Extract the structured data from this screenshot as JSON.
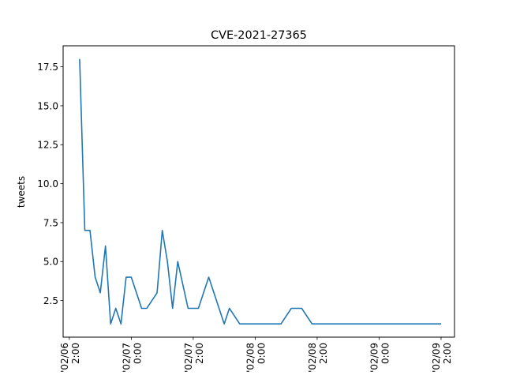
{
  "chart_data": {
    "type": "line",
    "title": "CVE-2021-27365",
    "xlabel": "",
    "ylabel": "tweets",
    "grid": false,
    "color": "#1f77b4",
    "ylim": [
      0.15,
      18.85
    ],
    "xlim": [
      -0.3,
      18.65
    ],
    "yticks": [
      2.5,
      5.0,
      7.5,
      10.0,
      12.5,
      15.0,
      17.5
    ],
    "ytick_labels": [
      "2.5",
      "5.0",
      "7.5",
      "10.0",
      "12.5",
      "15.0",
      "17.5"
    ],
    "xticks": [
      0,
      3,
      6,
      9,
      12,
      15,
      18
    ],
    "xtick_labels": [
      [
        "'02/06",
        "2:00"
      ],
      [
        "'02/07",
        "0:00"
      ],
      [
        "'02/07",
        "2:00"
      ],
      [
        "'02/08",
        "0:00"
      ],
      [
        "'02/08",
        "2:00"
      ],
      [
        "'02/09",
        "0:00"
      ],
      [
        "'02/09",
        "2:00"
      ]
    ],
    "x": [
      0.5,
      0.75,
      1.0,
      1.25,
      1.5,
      1.75,
      2.0,
      2.25,
      2.5,
      2.75,
      3.0,
      3.25,
      3.5,
      3.75,
      4.0,
      4.25,
      4.5,
      4.75,
      5.0,
      5.25,
      5.5,
      5.75,
      6.0,
      6.25,
      6.5,
      6.75,
      7.0,
      7.25,
      7.5,
      7.75,
      8.0,
      8.25,
      8.5,
      8.75,
      9.0,
      9.25,
      9.5,
      9.75,
      10.0,
      10.25,
      10.5,
      10.75,
      11.0,
      11.25,
      11.5,
      11.75,
      12.0,
      12.25,
      12.5,
      12.75,
      13.0,
      13.25,
      13.5,
      13.75,
      14.0,
      14.25,
      14.5,
      14.75,
      15.0,
      15.25,
      15.5,
      15.75,
      16.0,
      16.25,
      16.5,
      16.75,
      17.0,
      17.25,
      17.5,
      17.75,
      18.0
    ],
    "y": [
      18,
      7,
      7,
      4,
      3,
      6,
      1,
      2,
      1,
      4,
      4,
      3,
      2,
      2,
      2.5,
      3,
      7,
      5,
      2,
      5,
      3.5,
      2,
      2,
      2,
      3,
      4,
      3,
      2,
      1,
      2,
      1.5,
      1,
      1,
      1,
      1,
      1,
      1,
      1,
      1,
      1,
      1.5,
      2,
      2,
      2,
      1.5,
      1,
      1,
      1,
      1,
      1,
      1,
      1,
      1,
      1,
      1,
      1,
      1,
      1,
      1,
      1,
      1,
      1,
      1,
      1,
      1,
      1,
      1,
      1,
      1,
      1,
      1
    ]
  }
}
